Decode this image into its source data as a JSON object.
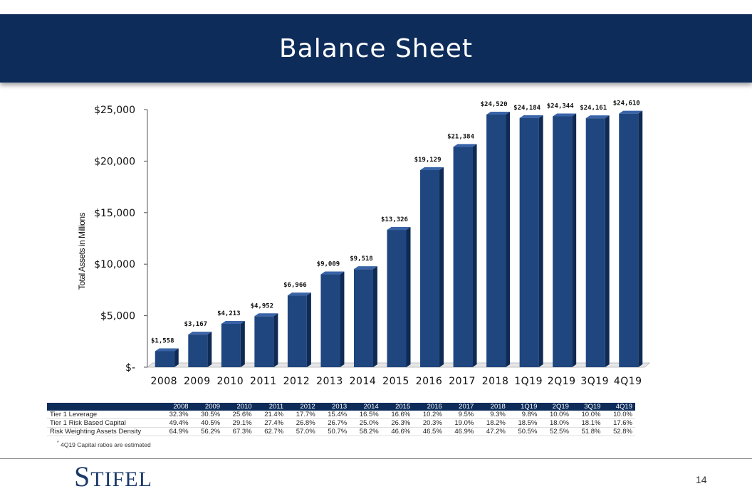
{
  "slide": {
    "title": "Balance Sheet",
    "page_number": "14"
  },
  "logo": {
    "text": "Stifel"
  },
  "chart_data": {
    "type": "bar",
    "ylabel": "Total Assets in Millions",
    "ylim": [
      0,
      25000
    ],
    "yticks": [
      "$-",
      "$5,000",
      "$10,000",
      "$15,000",
      "$20,000",
      "$25,000"
    ],
    "ytick_values": [
      0,
      5000,
      10000,
      15000,
      20000,
      25000
    ],
    "categories": [
      "2008",
      "2009",
      "2010",
      "2011",
      "2012",
      "2013",
      "2014",
      "2015",
      "2016",
      "2017",
      "2018",
      "1Q19",
      "2Q19",
      "3Q19",
      "4Q19"
    ],
    "values": [
      1558,
      3167,
      4213,
      4952,
      6966,
      9009,
      9518,
      13326,
      19129,
      21384,
      24520,
      24184,
      24344,
      24161,
      24610
    ],
    "data_labels": [
      "$1,558",
      "$3,167",
      "$4,213",
      "$4,952",
      "$6,966",
      "$9,009",
      "$9,518",
      "$13,326",
      "$19,129",
      "$21,384",
      "$24,520",
      "$24,184",
      "$24,344",
      "$24,161",
      "$24,610"
    ],
    "bar_color": "#1f467f"
  },
  "table": {
    "headers": [
      "2008",
      "2009",
      "2010",
      "2011",
      "2012",
      "2013",
      "2014",
      "2015",
      "2016",
      "2017",
      "2018",
      "1Q19",
      "2Q19",
      "3Q19",
      "4Q19"
    ],
    "rows": [
      {
        "label": "Tier 1 Leverage",
        "values": [
          "32.3%",
          "30.5%",
          "25.6%",
          "21.4%",
          "17.7%",
          "15.4%",
          "16.5%",
          "16.6%",
          "10.2%",
          "9.5%",
          "9.3%",
          "9.8%",
          "10.0%",
          "10.0%",
          "10.0%"
        ]
      },
      {
        "label": "Tier 1 Risk Based Capital",
        "values": [
          "49.4%",
          "40.5%",
          "29.1%",
          "27.4%",
          "26.8%",
          "26.7%",
          "25.0%",
          "26.3%",
          "20.3%",
          "19.0%",
          "18.2%",
          "18.5%",
          "18.0%",
          "18.1%",
          "17.6%"
        ]
      },
      {
        "label": "Risk Weighting Assets Density",
        "values": [
          "64.9%",
          "56.2%",
          "67.3%",
          "62.7%",
          "57.0%",
          "50.7%",
          "58.2%",
          "46.6%",
          "46.5%",
          "46.9%",
          "47.2%",
          "50.5%",
          "52.5%",
          "51.8%",
          "52.8%"
        ]
      }
    ]
  },
  "footnote": {
    "marker": "*",
    "text": "4Q19 Capital ratios are estimated"
  }
}
